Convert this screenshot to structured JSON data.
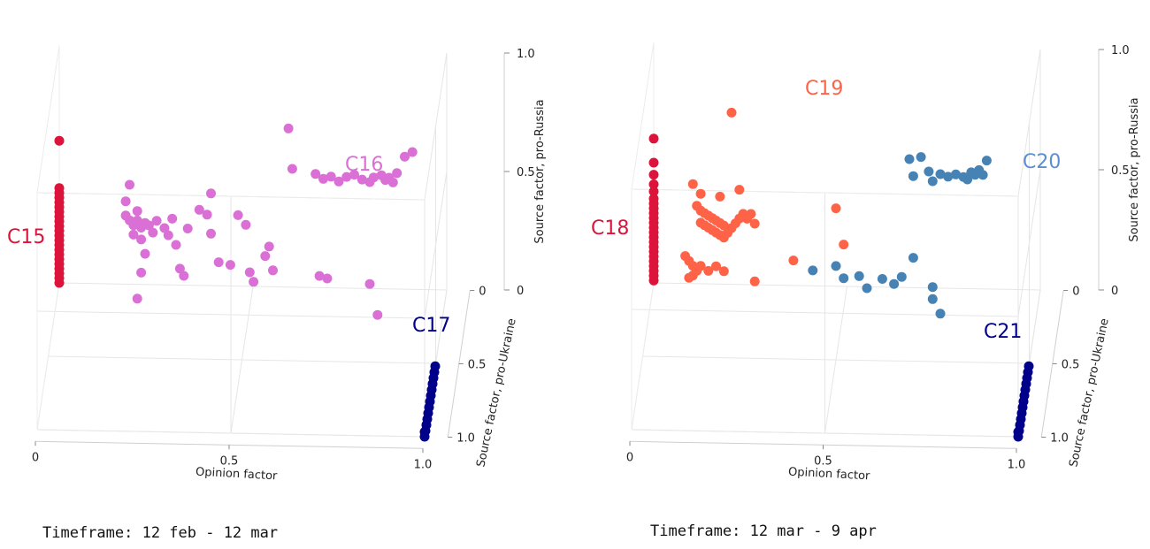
{
  "chart_data": [
    {
      "type": "scatter3d",
      "xlabel": "Opinion factor",
      "ylabel": "Source factor, pro-Ukraine",
      "zlabel": "Source factor, pro-Russia",
      "x_ticks": [
        "0",
        "0.5",
        "1.0"
      ],
      "y_ticks": [
        "0",
        "0.5",
        "1.0"
      ],
      "z_ticks": [
        "0",
        "0.5",
        "1.0"
      ],
      "xlim": [
        0,
        1
      ],
      "ylim": [
        0,
        1
      ],
      "zlim": [
        0,
        1
      ],
      "grid": true,
      "caption": "Timeframe: 12 feb - 12 mar",
      "series": [
        {
          "name": "C15",
          "color": "#dc143c",
          "points": [
            [
              0,
              0,
              0.6
            ],
            [
              0,
              0,
              0.4
            ],
            [
              0,
              0,
              0.38
            ],
            [
              0,
              0,
              0.36
            ],
            [
              0,
              0,
              0.34
            ],
            [
              0,
              0,
              0.32
            ],
            [
              0,
              0,
              0.3
            ],
            [
              0,
              0,
              0.28
            ],
            [
              0,
              0,
              0.26
            ],
            [
              0,
              0,
              0.24
            ],
            [
              0,
              0,
              0.22
            ],
            [
              0,
              0,
              0.2
            ],
            [
              0,
              0,
              0.18
            ],
            [
              0,
              0,
              0.16
            ],
            [
              0,
              0,
              0.14
            ],
            [
              0,
              0,
              0.12
            ],
            [
              0,
              0,
              0.1
            ],
            [
              0,
              0,
              0.08
            ],
            [
              0,
              0,
              0.06
            ],
            [
              0,
              0,
              0.04
            ],
            [
              0,
              0,
              0.02
            ],
            [
              0,
              0,
              0.0
            ]
          ]
        },
        {
          "name": "C16",
          "color": "#da70d6",
          "points": [
            [
              0.2,
              0.5,
              0.6
            ],
            [
              0.21,
              0.5,
              0.58
            ],
            [
              0.22,
              0.5,
              0.56
            ],
            [
              0.23,
              0.5,
              0.58
            ],
            [
              0.24,
              0.5,
              0.55
            ],
            [
              0.25,
              0.5,
              0.57
            ],
            [
              0.22,
              0.5,
              0.52
            ],
            [
              0.24,
              0.5,
              0.5
            ],
            [
              0.26,
              0.5,
              0.56
            ],
            [
              0.27,
              0.5,
              0.53
            ],
            [
              0.28,
              0.5,
              0.58
            ],
            [
              0.2,
              0.5,
              0.66
            ],
            [
              0.21,
              0.5,
              0.73
            ],
            [
              0.23,
              0.5,
              0.62
            ],
            [
              0.25,
              0.5,
              0.44
            ],
            [
              0.24,
              0.5,
              0.36
            ],
            [
              0.23,
              0.5,
              0.25
            ],
            [
              0.3,
              0.5,
              0.55
            ],
            [
              0.31,
              0.5,
              0.52
            ],
            [
              0.32,
              0.5,
              0.59
            ],
            [
              0.33,
              0.5,
              0.48
            ],
            [
              0.34,
              0.5,
              0.38
            ],
            [
              0.35,
              0.5,
              0.35
            ],
            [
              0.36,
              0.5,
              0.55
            ],
            [
              0.39,
              0.5,
              0.63
            ],
            [
              0.41,
              0.5,
              0.61
            ],
            [
              0.42,
              0.5,
              0.7
            ],
            [
              0.42,
              0.5,
              0.53
            ],
            [
              0.44,
              0.5,
              0.41
            ],
            [
              0.47,
              0.5,
              0.4
            ],
            [
              0.49,
              0.5,
              0.61
            ],
            [
              0.51,
              0.5,
              0.57
            ],
            [
              0.52,
              0.5,
              0.37
            ],
            [
              0.53,
              0.5,
              0.33
            ],
            [
              0.56,
              0.5,
              0.44
            ],
            [
              0.57,
              0.5,
              0.48
            ],
            [
              0.58,
              0.5,
              0.38
            ],
            [
              0.62,
              0.5,
              0.98
            ],
            [
              0.63,
              0.5,
              0.81
            ],
            [
              0.69,
              0.5,
              0.79
            ],
            [
              0.71,
              0.5,
              0.77
            ],
            [
              0.73,
              0.5,
              0.78
            ],
            [
              0.75,
              0.5,
              0.76
            ],
            [
              0.77,
              0.5,
              0.78
            ],
            [
              0.79,
              0.5,
              0.79
            ],
            [
              0.81,
              0.5,
              0.77
            ],
            [
              0.83,
              0.5,
              0.76
            ],
            [
              0.84,
              0.5,
              0.78
            ],
            [
              0.86,
              0.5,
              0.79
            ],
            [
              0.87,
              0.5,
              0.77
            ],
            [
              0.88,
              0.5,
              0.78
            ],
            [
              0.89,
              0.5,
              0.76
            ],
            [
              0.9,
              0.5,
              0.8
            ],
            [
              0.92,
              0.5,
              0.87
            ],
            [
              0.94,
              0.5,
              0.89
            ],
            [
              0.7,
              0.5,
              0.36
            ],
            [
              0.72,
              0.5,
              0.35
            ],
            [
              0.83,
              0.5,
              0.33
            ],
            [
              0.85,
              0.5,
              0.2
            ]
          ]
        },
        {
          "name": "C17",
          "color": "#00008b",
          "points": [
            [
              1,
              1,
              0.02
            ],
            [
              1,
              1,
              0
            ],
            [
              1,
              0.96,
              0
            ],
            [
              1,
              0.92,
              0
            ],
            [
              1,
              0.88,
              0
            ],
            [
              1,
              0.84,
              0
            ],
            [
              1,
              0.8,
              0
            ],
            [
              1,
              0.76,
              0
            ],
            [
              1,
              0.72,
              0
            ],
            [
              1,
              0.68,
              0
            ],
            [
              1,
              0.64,
              0
            ],
            [
              1,
              0.6,
              0
            ],
            [
              1,
              0.56,
              0
            ],
            [
              1,
              0.52,
              0
            ]
          ]
        }
      ]
    },
    {
      "type": "scatter3d",
      "xlabel": "Opinion factor",
      "ylabel": "Source factor, pro-Ukraine",
      "zlabel": "Source factor, pro-Russia",
      "x_ticks": [
        "0",
        "0.5",
        "1.0"
      ],
      "y_ticks": [
        "0",
        "0.5",
        "1.0"
      ],
      "z_ticks": [
        "0",
        "0.5",
        "1.0"
      ],
      "xlim": [
        0,
        1
      ],
      "ylim": [
        0,
        1
      ],
      "zlim": [
        0,
        1
      ],
      "grid": true,
      "caption": "Timeframe: 12 mar - 9 apr",
      "series": [
        {
          "name": "C18",
          "color": "#dc143c",
          "points": [
            [
              0,
              0,
              0.6
            ],
            [
              0,
              0,
              0.5
            ],
            [
              0,
              0,
              0.45
            ],
            [
              0,
              0,
              0.41
            ],
            [
              0,
              0,
              0.38
            ],
            [
              0,
              0,
              0.35
            ],
            [
              0,
              0,
              0.33
            ],
            [
              0,
              0,
              0.31
            ],
            [
              0,
              0,
              0.29
            ],
            [
              0,
              0,
              0.27
            ],
            [
              0,
              0,
              0.25
            ],
            [
              0,
              0,
              0.23
            ],
            [
              0,
              0,
              0.21
            ],
            [
              0,
              0,
              0.19
            ],
            [
              0,
              0,
              0.17
            ],
            [
              0,
              0,
              0.15
            ],
            [
              0,
              0,
              0.13
            ],
            [
              0,
              0,
              0.11
            ],
            [
              0,
              0,
              0.09
            ],
            [
              0,
              0,
              0.07
            ],
            [
              0,
              0,
              0.05
            ],
            [
              0,
              0,
              0.03
            ],
            [
              0,
              0,
              0.01
            ]
          ]
        },
        {
          "name": "C19",
          "color": "#ff6347",
          "points": [
            [
              0.23,
              0.5,
              1.02
            ],
            [
              0.13,
              0.5,
              0.72
            ],
            [
              0.15,
              0.5,
              0.68
            ],
            [
              0.2,
              0.5,
              0.67
            ],
            [
              0.25,
              0.5,
              0.7
            ],
            [
              0.14,
              0.5,
              0.63
            ],
            [
              0.15,
              0.5,
              0.61
            ],
            [
              0.16,
              0.5,
              0.6
            ],
            [
              0.17,
              0.5,
              0.59
            ],
            [
              0.18,
              0.5,
              0.58
            ],
            [
              0.19,
              0.5,
              0.57
            ],
            [
              0.2,
              0.5,
              0.56
            ],
            [
              0.21,
              0.5,
              0.55
            ],
            [
              0.15,
              0.5,
              0.56
            ],
            [
              0.16,
              0.5,
              0.55
            ],
            [
              0.17,
              0.5,
              0.54
            ],
            [
              0.18,
              0.5,
              0.53
            ],
            [
              0.19,
              0.5,
              0.52
            ],
            [
              0.2,
              0.5,
              0.51
            ],
            [
              0.21,
              0.5,
              0.5
            ],
            [
              0.22,
              0.5,
              0.52
            ],
            [
              0.23,
              0.5,
              0.54
            ],
            [
              0.24,
              0.5,
              0.56
            ],
            [
              0.25,
              0.5,
              0.58
            ],
            [
              0.26,
              0.5,
              0.6
            ],
            [
              0.27,
              0.5,
              0.58
            ],
            [
              0.28,
              0.5,
              0.6
            ],
            [
              0.29,
              0.5,
              0.56
            ],
            [
              0.11,
              0.5,
              0.42
            ],
            [
              0.12,
              0.5,
              0.4
            ],
            [
              0.13,
              0.5,
              0.38
            ],
            [
              0.14,
              0.5,
              0.36
            ],
            [
              0.15,
              0.5,
              0.38
            ],
            [
              0.17,
              0.5,
              0.36
            ],
            [
              0.19,
              0.5,
              0.38
            ],
            [
              0.21,
              0.5,
              0.36
            ],
            [
              0.13,
              0.5,
              0.34
            ],
            [
              0.12,
              0.5,
              0.33
            ],
            [
              0.29,
              0.5,
              0.32
            ],
            [
              0.39,
              0.5,
              0.41
            ],
            [
              0.5,
              0.5,
              0.63
            ],
            [
              0.52,
              0.5,
              0.48
            ]
          ]
        },
        {
          "name": "C20",
          "color": "#4682b4",
          "points": [
            [
              0.69,
              0.5,
              0.84
            ],
            [
              0.72,
              0.5,
              0.85
            ],
            [
              0.74,
              0.5,
              0.79
            ],
            [
              0.77,
              0.5,
              0.78
            ],
            [
              0.79,
              0.5,
              0.77
            ],
            [
              0.81,
              0.5,
              0.78
            ],
            [
              0.83,
              0.5,
              0.77
            ],
            [
              0.85,
              0.5,
              0.79
            ],
            [
              0.86,
              0.5,
              0.78
            ],
            [
              0.87,
              0.5,
              0.8
            ],
            [
              0.88,
              0.5,
              0.78
            ],
            [
              0.89,
              0.5,
              0.84
            ],
            [
              0.7,
              0.5,
              0.77
            ],
            [
              0.75,
              0.5,
              0.75
            ],
            [
              0.84,
              0.5,
              0.76
            ],
            [
              0.44,
              0.5,
              0.37
            ],
            [
              0.5,
              0.5,
              0.39
            ],
            [
              0.52,
              0.5,
              0.34
            ],
            [
              0.56,
              0.5,
              0.35
            ],
            [
              0.58,
              0.5,
              0.3
            ],
            [
              0.62,
              0.5,
              0.34
            ],
            [
              0.65,
              0.5,
              0.32
            ],
            [
              0.67,
              0.5,
              0.35
            ],
            [
              0.7,
              0.5,
              0.43
            ],
            [
              0.75,
              0.5,
              0.31
            ],
            [
              0.75,
              0.5,
              0.26
            ],
            [
              0.77,
              0.5,
              0.2
            ]
          ]
        },
        {
          "name": "C21",
          "color": "#00008b",
          "points": [
            [
              1,
              1,
              0.02
            ],
            [
              1,
              1,
              0
            ],
            [
              1,
              0.96,
              0
            ],
            [
              1,
              0.92,
              0
            ],
            [
              1,
              0.88,
              0
            ],
            [
              1,
              0.84,
              0
            ],
            [
              1,
              0.8,
              0
            ],
            [
              1,
              0.76,
              0
            ],
            [
              1,
              0.72,
              0
            ],
            [
              1,
              0.68,
              0
            ],
            [
              1,
              0.64,
              0
            ],
            [
              1,
              0.6,
              0
            ],
            [
              1,
              0.56,
              0
            ],
            [
              1,
              0.52,
              0
            ]
          ]
        }
      ]
    }
  ]
}
